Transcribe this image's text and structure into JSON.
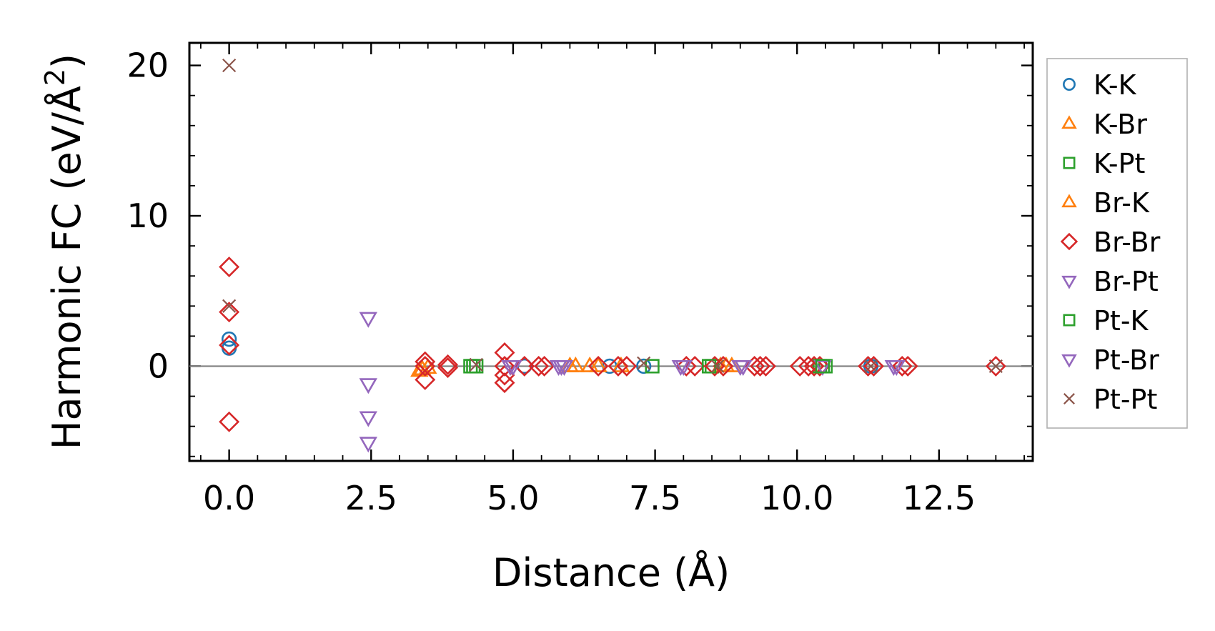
{
  "chart_data": {
    "type": "scatter",
    "title": "",
    "xlabel": "Distance (Å)",
    "ylabel": "Harmonic FC (eV/Å²)",
    "ylabel_main": "Harmonic FC (eV/Å",
    "ylabel_sup": "2",
    "ylabel_end": ")",
    "xlim": [
      -0.7,
      14.15
    ],
    "ylim": [
      -6.3,
      21.5
    ],
    "xticks": [
      0.0,
      2.5,
      5.0,
      7.5,
      10.0,
      12.5
    ],
    "xtick_labels": [
      "0.0",
      "2.5",
      "5.0",
      "7.5",
      "10.0",
      "12.5"
    ],
    "yticks": [
      0,
      10,
      20
    ],
    "ytick_labels": [
      "0",
      "10",
      "20"
    ],
    "grid": false,
    "zero_line": true,
    "legend_position": "outside-right",
    "series": [
      {
        "name": "K-K",
        "marker": "circle",
        "color": "#1f77b4",
        "points": [
          [
            0,
            1.8
          ],
          [
            0,
            1.2
          ],
          [
            5.2,
            0
          ],
          [
            6.7,
            0
          ],
          [
            7.3,
            0
          ],
          [
            11.3,
            0
          ]
        ]
      },
      {
        "name": "K-Br",
        "marker": "triangle-up",
        "color": "#ff7f0e",
        "points": [
          [
            3.35,
            -0.3
          ],
          [
            3.5,
            -0.1
          ],
          [
            6.0,
            0
          ],
          [
            6.35,
            0
          ],
          [
            6.9,
            0
          ],
          [
            8.65,
            0
          ],
          [
            8.85,
            0
          ]
        ]
      },
      {
        "name": "K-Pt",
        "marker": "square",
        "color": "#2ca02c",
        "points": [
          [
            4.25,
            0
          ],
          [
            4.35,
            0
          ],
          [
            7.45,
            0
          ],
          [
            8.5,
            0
          ],
          [
            10.4,
            0
          ],
          [
            10.5,
            0
          ]
        ]
      },
      {
        "name": "Br-K",
        "marker": "triangle-up",
        "color": "#ff7f0e",
        "points": [
          [
            3.4,
            -0.2
          ],
          [
            6.1,
            0
          ],
          [
            6.5,
            0
          ],
          [
            8.75,
            0
          ]
        ]
      },
      {
        "name": "Br-Br",
        "marker": "diamond",
        "color": "#d62728",
        "points": [
          [
            0,
            6.6
          ],
          [
            0,
            3.6
          ],
          [
            0,
            1.4
          ],
          [
            0,
            -3.7
          ],
          [
            3.45,
            0.3
          ],
          [
            3.45,
            0
          ],
          [
            3.45,
            -0.9
          ],
          [
            3.85,
            0.1
          ],
          [
            3.85,
            -0.1
          ],
          [
            4.85,
            0.9
          ],
          [
            4.85,
            0
          ],
          [
            4.85,
            -0.6
          ],
          [
            4.85,
            -1.1
          ],
          [
            5.2,
            0
          ],
          [
            5.45,
            0
          ],
          [
            5.55,
            0
          ],
          [
            6.5,
            0
          ],
          [
            6.85,
            0
          ],
          [
            7.0,
            0
          ],
          [
            8.05,
            0
          ],
          [
            8.2,
            0
          ],
          [
            8.55,
            0
          ],
          [
            8.7,
            0
          ],
          [
            9.25,
            0
          ],
          [
            9.35,
            0
          ],
          [
            9.45,
            0
          ],
          [
            10.05,
            0
          ],
          [
            10.2,
            0
          ],
          [
            10.3,
            0
          ],
          [
            10.4,
            0
          ],
          [
            11.25,
            0
          ],
          [
            11.35,
            0
          ],
          [
            11.85,
            0
          ],
          [
            11.95,
            0
          ],
          [
            13.5,
            0
          ]
        ]
      },
      {
        "name": "Br-Pt",
        "marker": "triangle-down",
        "color": "#9467bd",
        "points": [
          [
            2.45,
            3.2
          ],
          [
            2.45,
            -1.2
          ],
          [
            2.45,
            -3.4
          ],
          [
            2.45,
            -5.1
          ],
          [
            4.95,
            0
          ],
          [
            5.85,
            0
          ],
          [
            5.9,
            0
          ],
          [
            7.95,
            0
          ],
          [
            9.0,
            0
          ],
          [
            10.45,
            0
          ],
          [
            11.75,
            0
          ]
        ]
      },
      {
        "name": "Pt-K",
        "marker": "square",
        "color": "#2ca02c",
        "points": [
          [
            4.3,
            0
          ],
          [
            8.45,
            0
          ],
          [
            10.45,
            0
          ]
        ]
      },
      {
        "name": "Pt-Br",
        "marker": "triangle-down",
        "color": "#9467bd",
        "points": [
          [
            5.0,
            0
          ],
          [
            5.8,
            0
          ],
          [
            8.0,
            0
          ],
          [
            9.05,
            0
          ],
          [
            11.7,
            0
          ]
        ]
      },
      {
        "name": "Pt-Pt",
        "marker": "x",
        "color": "#8c564b",
        "points": [
          [
            0,
            20
          ],
          [
            0,
            4
          ],
          [
            4.35,
            0.1
          ],
          [
            7.3,
            0.2
          ],
          [
            8.6,
            0
          ],
          [
            11.3,
            0
          ],
          [
            13.5,
            0
          ]
        ]
      }
    ]
  }
}
